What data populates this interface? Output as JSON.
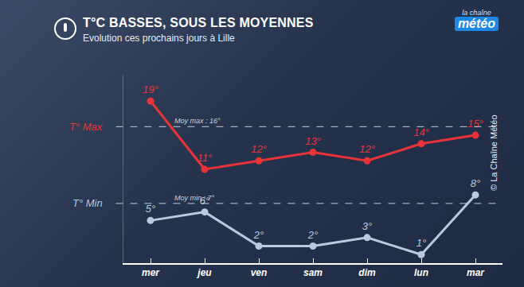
{
  "chart_data": {
    "type": "line",
    "title": "T°C BASSES, SOUS LES MOYENNES",
    "subtitle": "Evolution ces prochains jours à Lille",
    "logo": [
      "la chaîne",
      "météo"
    ],
    "credit": "© La Chaîne Météo",
    "categories": [
      "mer",
      "jeu",
      "ven",
      "sam",
      "dim",
      "lun",
      "mar"
    ],
    "series": [
      {
        "name": "T° Max",
        "color": "#e8333a",
        "values": [
          19,
          11,
          12,
          13,
          12,
          14,
          15
        ],
        "value_labels": [
          "19°",
          "11°",
          "12°",
          "13°",
          "12°",
          "14°",
          "15°"
        ],
        "average": 16,
        "average_label": "Moy max : 16°"
      },
      {
        "name": "T° Min",
        "color": "#b9c9de",
        "values": [
          5,
          6,
          2,
          2,
          3,
          1,
          8
        ],
        "value_labels": [
          "5°",
          "6°",
          "2°",
          "2°",
          "3°",
          "1°",
          "8°"
        ],
        "average": 7,
        "average_label": "Moy min : 7°"
      }
    ],
    "ylim": [
      0,
      22
    ],
    "yticks": [],
    "grid": false,
    "data_labels": true,
    "tick_labels": "x",
    "marker": "circle",
    "line_style": "solid"
  }
}
